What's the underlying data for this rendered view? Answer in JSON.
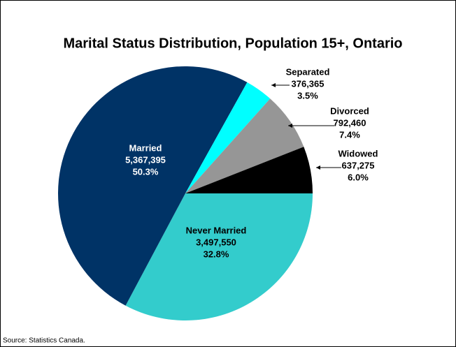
{
  "chart_data": {
    "type": "pie",
    "title": "Marital Status Distribution, Population 15+, Ontario",
    "categories": [
      "Never Married",
      "Married",
      "Separated",
      "Divorced",
      "Widowed"
    ],
    "values": [
      3497550,
      5367395,
      376365,
      792460,
      637275
    ],
    "value_labels": [
      "3,497,550",
      "5,367,395",
      "376,365",
      "792,460",
      "637,275"
    ],
    "percent_labels": [
      "32.8%",
      "50.3%",
      "3.5%",
      "7.4%",
      "6.0%"
    ],
    "colors": [
      "#33cccc",
      "#003366",
      "#00ffff",
      "#969696",
      "#000000"
    ],
    "source": "Source: Statistics Canada."
  }
}
